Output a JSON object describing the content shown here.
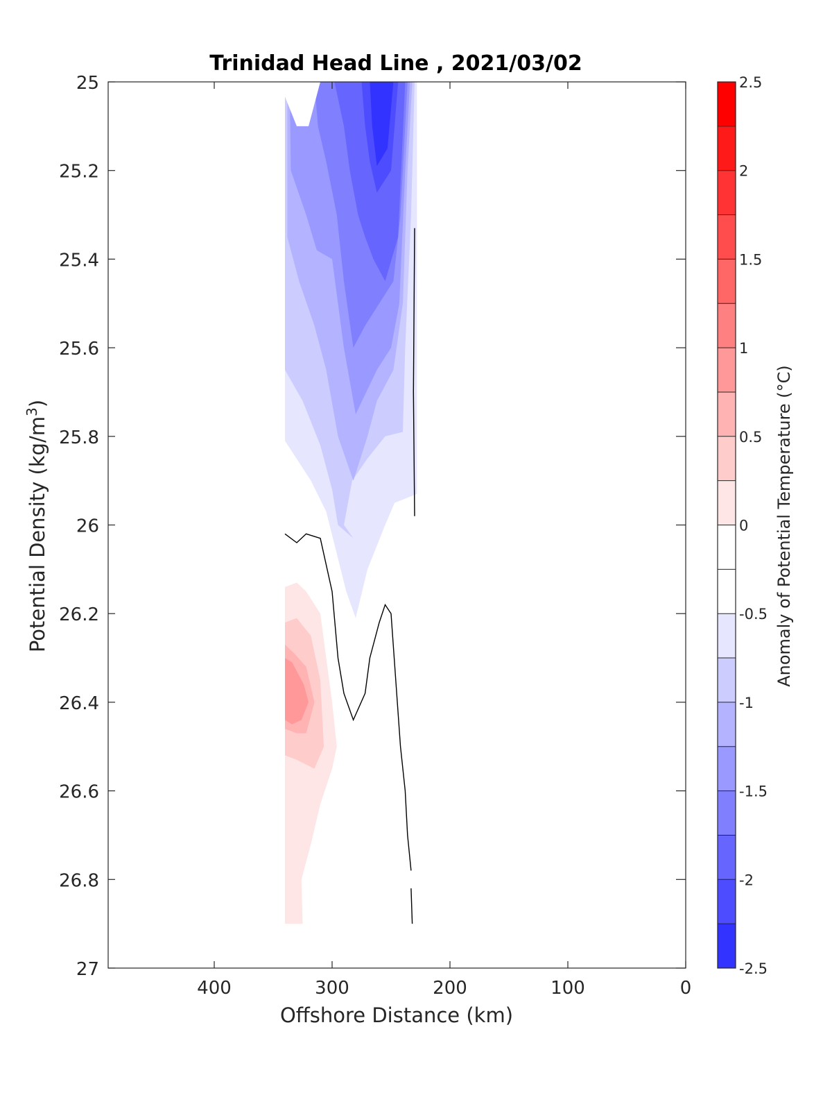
{
  "chart_data": {
    "type": "contour",
    "title": "Trinidad Head Line , 2021/03/02",
    "xlabel": "Offshore Distance (km)",
    "ylabel_main": "Potential Density (kg/m",
    "ylabel_sup": "3",
    "ylabel_close": ")",
    "colorbar_label": "Anomaly of Potential Temperature (°C)",
    "xlim": [
      490,
      0
    ],
    "ylim": [
      25,
      27
    ],
    "y_reversed": true,
    "x_reversed": true,
    "xticks": [
      400,
      300,
      200,
      100,
      0
    ],
    "xtick_labels": [
      "400",
      "300",
      "200",
      "100",
      "0"
    ],
    "yticks": [
      25,
      25.2,
      25.4,
      25.6,
      25.8,
      26,
      26.2,
      26.4,
      26.6,
      26.8,
      27
    ],
    "ytick_labels": [
      "25",
      "25.2",
      "25.4",
      "25.6",
      "25.8",
      "26",
      "26.2",
      "26.4",
      "26.6",
      "26.8",
      "27"
    ],
    "colorbar": {
      "range": [
        -2.5,
        2.5
      ],
      "step": 0.25,
      "ticks": [
        2.5,
        2,
        1.5,
        1,
        0.5,
        0,
        -0.5,
        -1,
        -1.5,
        -2,
        -2.5
      ],
      "tick_labels": [
        "2.5",
        "2",
        "1.5",
        "1",
        "0.5",
        "0",
        "-0.5",
        "-1",
        "-1.5",
        "-2",
        "-2.5"
      ],
      "levels": [
        {
          "lo": 2.25,
          "hi": 2.5,
          "color": "#ff0000"
        },
        {
          "lo": 2.0,
          "hi": 2.25,
          "color": "#ff1a1a"
        },
        {
          "lo": 1.75,
          "hi": 2.0,
          "color": "#ff3333"
        },
        {
          "lo": 1.5,
          "hi": 1.75,
          "color": "#ff4d4d"
        },
        {
          "lo": 1.25,
          "hi": 1.5,
          "color": "#ff6666"
        },
        {
          "lo": 1.0,
          "hi": 1.25,
          "color": "#ff8080"
        },
        {
          "lo": 0.75,
          "hi": 1.0,
          "color": "#ff9999"
        },
        {
          "lo": 0.5,
          "hi": 0.75,
          "color": "#ffb3b3"
        },
        {
          "lo": 0.25,
          "hi": 0.5,
          "color": "#ffcccc"
        },
        {
          "lo": 0.0,
          "hi": 0.25,
          "color": "#ffe6e6"
        },
        {
          "lo": -0.25,
          "hi": 0.0,
          "color": "#ffffff"
        },
        {
          "lo": -0.5,
          "hi": -0.25,
          "color": "#ffffff"
        },
        {
          "lo": -0.75,
          "hi": -0.5,
          "color": "#e6e6ff"
        },
        {
          "lo": -1.0,
          "hi": -0.75,
          "color": "#ccccff"
        },
        {
          "lo": -1.25,
          "hi": -1.0,
          "color": "#b3b3ff"
        },
        {
          "lo": -1.5,
          "hi": -1.25,
          "color": "#9999ff"
        },
        {
          "lo": -1.75,
          "hi": -1.5,
          "color": "#8080ff"
        },
        {
          "lo": -2.0,
          "hi": -1.75,
          "color": "#6666ff"
        },
        {
          "lo": -2.25,
          "hi": -2.0,
          "color": "#4d4dff"
        },
        {
          "lo": -2.5,
          "hi": -2.25,
          "color": "#3333ff"
        }
      ]
    },
    "filled_contours": [
      {
        "level": -0.5,
        "color": "#e6e6ff",
        "points": [
          [
            340,
            25
          ],
          [
            228,
            25
          ],
          [
            228,
            25.93
          ],
          [
            247,
            25.95
          ],
          [
            255,
            26.0
          ],
          [
            270,
            26.1
          ],
          [
            280,
            26.21
          ],
          [
            288,
            26.15
          ],
          [
            305,
            25.97
          ],
          [
            318,
            25.9
          ],
          [
            340,
            25.81
          ]
        ]
      },
      {
        "level": -0.75,
        "color": "#ccccff",
        "points": [
          [
            340,
            25
          ],
          [
            230,
            25
          ],
          [
            233,
            25.3
          ],
          [
            238,
            25.6
          ],
          [
            240,
            25.79
          ],
          [
            255,
            25.8
          ],
          [
            270,
            25.85
          ],
          [
            283,
            25.9
          ],
          [
            290,
            26.0
          ],
          [
            282,
            26.03
          ],
          [
            295,
            26.0
          ],
          [
            300,
            25.92
          ],
          [
            310,
            25.82
          ],
          [
            325,
            25.72
          ],
          [
            340,
            25.65
          ]
        ]
      },
      {
        "level": -1.0,
        "color": "#b3b3ff",
        "points": [
          [
            338,
            25
          ],
          [
            232,
            25
          ],
          [
            236,
            25.2
          ],
          [
            240,
            25.5
          ],
          [
            248,
            25.65
          ],
          [
            262,
            25.72
          ],
          [
            270,
            25.8
          ],
          [
            282,
            25.9
          ],
          [
            295,
            25.8
          ],
          [
            305,
            25.65
          ],
          [
            315,
            25.55
          ],
          [
            328,
            25.45
          ],
          [
            338,
            25.35
          ]
        ]
      },
      {
        "level": -1.25,
        "color": "#9999ff",
        "points": [
          [
            336,
            25
          ],
          [
            234,
            25
          ],
          [
            238,
            25.2
          ],
          [
            243,
            25.5
          ],
          [
            250,
            25.6
          ],
          [
            262,
            25.65
          ],
          [
            280,
            25.75
          ],
          [
            290,
            25.6
          ],
          [
            300,
            25.4
          ],
          [
            313,
            25.38
          ],
          [
            322,
            25.3
          ],
          [
            335,
            25.2
          ]
        ]
      },
      {
        "level": -1.5,
        "color": "#8080ff",
        "points": [
          [
            315,
            25
          ],
          [
            236,
            25
          ],
          [
            242,
            25.3
          ],
          [
            248,
            25.45
          ],
          [
            260,
            25.5
          ],
          [
            272,
            25.55
          ],
          [
            282,
            25.6
          ],
          [
            290,
            25.45
          ],
          [
            296,
            25.3
          ],
          [
            305,
            25.18
          ],
          [
            312,
            25.1
          ]
        ]
      },
      {
        "level": -1.75,
        "color": "#6666ff",
        "points": [
          [
            298,
            25
          ],
          [
            238,
            25
          ],
          [
            244,
            25.35
          ],
          [
            255,
            25.45
          ],
          [
            265,
            25.4
          ],
          [
            272,
            25.35
          ],
          [
            278,
            25.3
          ],
          [
            285,
            25.2
          ],
          [
            290,
            25.1
          ]
        ]
      },
      {
        "level": -2.0,
        "color": "#4d4dff",
        "points": [
          [
            275,
            25
          ],
          [
            244,
            25
          ],
          [
            250,
            25.2
          ],
          [
            262,
            25.25
          ],
          [
            268,
            25.18
          ],
          [
            272,
            25.1
          ]
        ]
      },
      {
        "level": -2.25,
        "color": "#3333ff",
        "points": [
          [
            268,
            25
          ],
          [
            248,
            25
          ],
          [
            253,
            25.15
          ],
          [
            262,
            25.19
          ],
          [
            266,
            25.1
          ]
        ]
      },
      {
        "level": 0.25,
        "color": "#ffe6e6",
        "points": [
          [
            340,
            26.14
          ],
          [
            330,
            26.13
          ],
          [
            322,
            26.15
          ],
          [
            310,
            26.2
          ],
          [
            305,
            26.3
          ],
          [
            300,
            26.4
          ],
          [
            296,
            26.5
          ],
          [
            300,
            26.55
          ],
          [
            310,
            26.63
          ],
          [
            318,
            26.72
          ],
          [
            326,
            26.8
          ],
          [
            325,
            26.9
          ],
          [
            340,
            26.9
          ]
        ]
      },
      {
        "level": 0.5,
        "color": "#ffcccc",
        "points": [
          [
            340,
            26.22
          ],
          [
            330,
            26.21
          ],
          [
            318,
            26.25
          ],
          [
            310,
            26.35
          ],
          [
            307,
            26.5
          ],
          [
            315,
            26.55
          ],
          [
            330,
            26.53
          ],
          [
            340,
            26.52
          ]
        ]
      },
      {
        "level": 0.75,
        "color": "#ffb3b3",
        "points": [
          [
            340,
            26.27
          ],
          [
            332,
            26.29
          ],
          [
            322,
            26.32
          ],
          [
            315,
            26.4
          ],
          [
            322,
            26.47
          ],
          [
            330,
            26.47
          ],
          [
            340,
            26.46
          ]
        ]
      },
      {
        "level": 1.0,
        "color": "#ff9999",
        "points": [
          [
            340,
            26.3
          ],
          [
            334,
            26.31
          ],
          [
            324,
            26.36
          ],
          [
            320,
            26.4
          ],
          [
            326,
            26.44
          ],
          [
            334,
            26.45
          ],
          [
            340,
            26.44
          ]
        ]
      }
    ],
    "zero_contours": [
      [
        [
          340,
          26.02
        ],
        [
          330,
          26.04
        ],
        [
          322,
          26.02
        ],
        [
          310,
          26.03
        ],
        [
          300,
          26.15
        ],
        [
          295,
          26.3
        ],
        [
          290,
          26.38
        ],
        [
          282,
          26.44
        ],
        [
          272,
          26.38
        ],
        [
          268,
          26.3
        ],
        [
          260,
          26.22
        ],
        [
          255,
          26.18
        ],
        [
          250,
          26.2
        ],
        [
          246,
          26.35
        ],
        [
          242,
          26.5
        ],
        [
          238,
          26.6
        ],
        [
          236,
          26.7
        ],
        [
          233,
          26.78
        ]
      ],
      [
        [
          230,
          25.33
        ],
        [
          231,
          25.7
        ],
        [
          230,
          25.98
        ]
      ],
      [
        [
          233,
          26.82
        ],
        [
          232,
          26.9
        ]
      ]
    ],
    "white_notch": [
      [
        345,
        25
      ],
      [
        330,
        25.1
      ],
      [
        320,
        25.1
      ],
      [
        310,
        25
      ],
      [
        345,
        25
      ]
    ]
  }
}
